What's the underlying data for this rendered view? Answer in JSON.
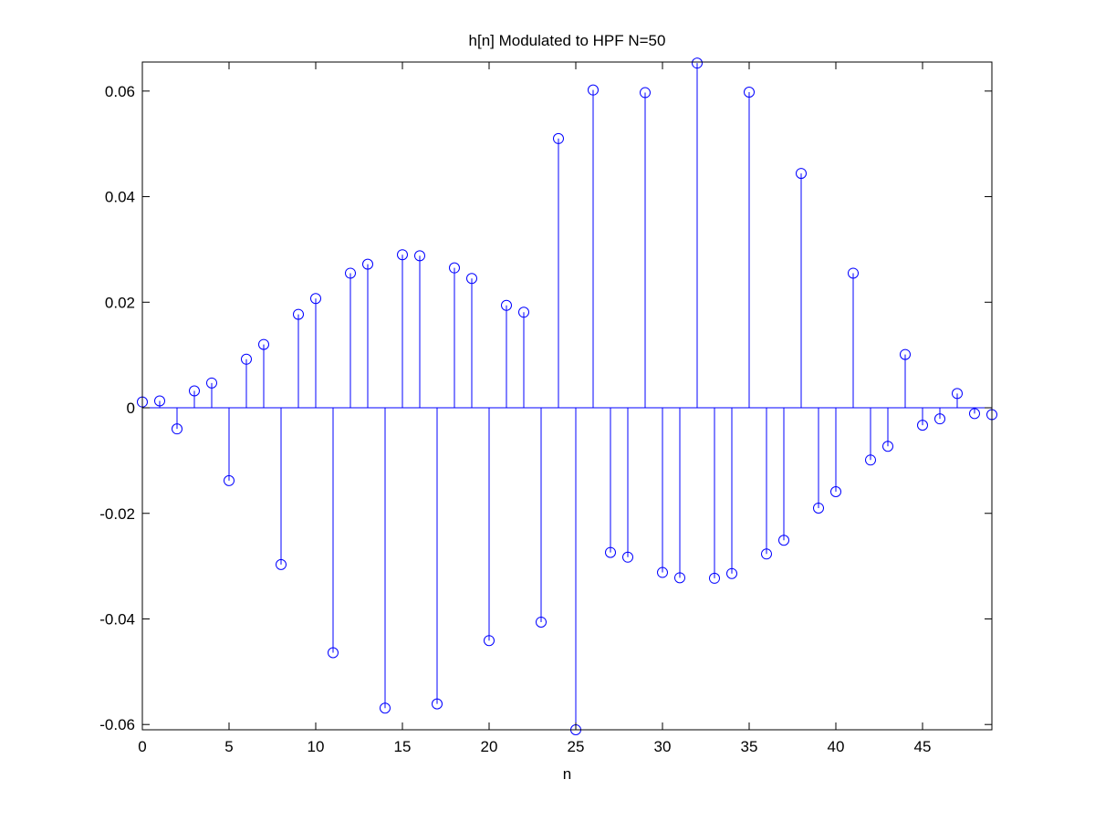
{
  "chart_data": {
    "type": "stem",
    "title": "h[n] Modulated to HPF N=50",
    "xlabel": "n",
    "ylabel": "",
    "xlim": [
      0,
      49
    ],
    "ylim": [
      -0.061,
      0.0655
    ],
    "xticks": [
      0,
      5,
      10,
      15,
      20,
      25,
      30,
      35,
      40,
      45
    ],
    "xtick_labels": [
      "0",
      "5",
      "10",
      "15",
      "20",
      "25",
      "30",
      "35",
      "40",
      "45"
    ],
    "yticks": [
      -0.06,
      -0.04,
      -0.02,
      0,
      0.02,
      0.04,
      0.06
    ],
    "ytick_labels": [
      "-0.06",
      "-0.04",
      "-0.02",
      "0",
      "0.02",
      "0.04",
      "0.06"
    ],
    "grid": false,
    "color": "#0000ff",
    "marker": "circle",
    "x": [
      0,
      1,
      2,
      3,
      4,
      5,
      6,
      7,
      8,
      9,
      10,
      11,
      12,
      13,
      14,
      15,
      16,
      17,
      18,
      19,
      20,
      21,
      22,
      23,
      24,
      25,
      26,
      27,
      28,
      29,
      30,
      31,
      32,
      33,
      34,
      35,
      36,
      37,
      38,
      39,
      40,
      41,
      42,
      43,
      44,
      45,
      46,
      47,
      48,
      49
    ],
    "y": [
      0.0011,
      0.0013,
      -0.004,
      0.0032,
      0.0047,
      -0.0138,
      0.0092,
      0.012,
      -0.0297,
      0.0177,
      0.0207,
      -0.0464,
      0.0255,
      0.0272,
      -0.0569,
      0.029,
      0.0288,
      -0.0561,
      0.0265,
      0.0245,
      -0.0441,
      0.0194,
      0.0181,
      -0.0406,
      0.051,
      -0.061,
      0.0602,
      -0.0274,
      -0.0283,
      0.0597,
      -0.0312,
      -0.0322,
      0.0653,
      -0.0323,
      -0.0314,
      0.0598,
      -0.0277,
      -0.0251,
      0.0444,
      -0.019,
      -0.0159,
      0.0255,
      -0.0099,
      -0.0073,
      0.0101,
      -0.0033,
      -0.0021,
      0.0027,
      -0.0011,
      -0.0013
    ]
  }
}
